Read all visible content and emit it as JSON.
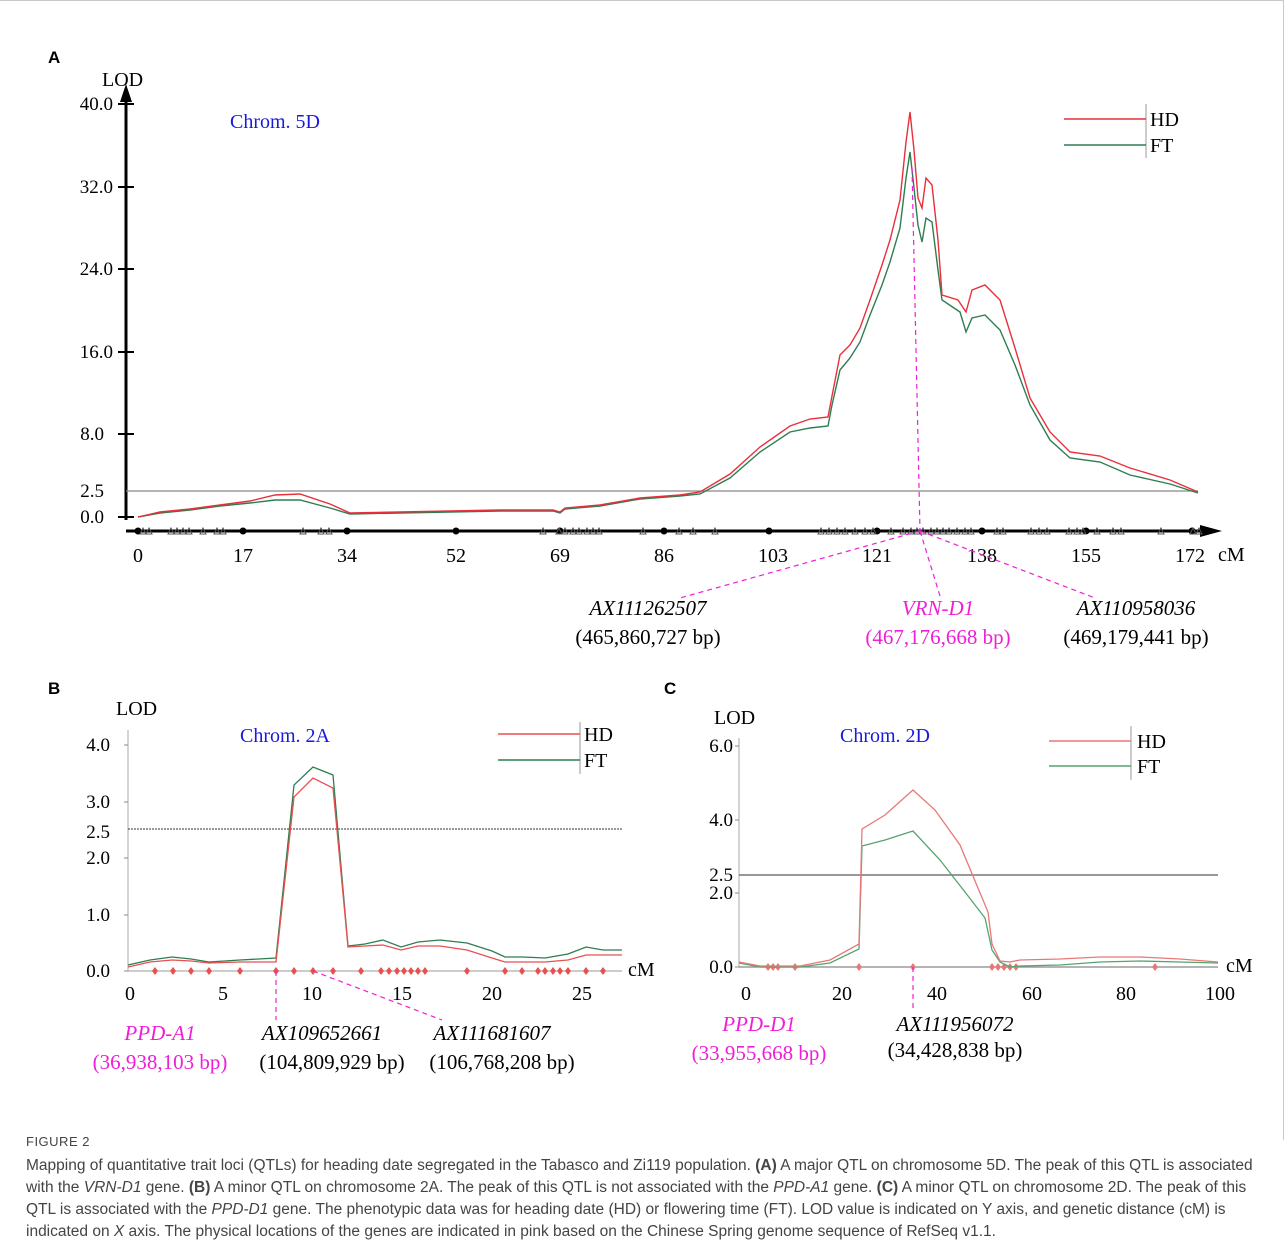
{
  "figure": {
    "panels": [
      {
        "letter": "A",
        "title": "Chrom. 5D",
        "ylabel": "LOD",
        "xlabel": "cM",
        "threshold": 2.5,
        "legend": [
          "HD",
          "FT"
        ],
        "ytick_labels": [
          "0.0",
          "2.5",
          "8.0",
          "16.0",
          "24.0",
          "32.0",
          "40.0"
        ],
        "xtick_labels": [
          "0",
          "17",
          "34",
          "52",
          "69",
          "86",
          "103",
          "121",
          "138",
          "155",
          "172"
        ],
        "markers": [
          {
            "name": "AX111262507",
            "pos": "(465,860,727 bp)",
            "pink": false
          },
          {
            "name": "VRN-D1",
            "pos": "(467,176,668 bp)",
            "pink": true
          },
          {
            "name": "AX110958036",
            "pos": "(469,179,441 bp)",
            "pink": false
          }
        ]
      },
      {
        "letter": "B",
        "title": "Chrom. 2A",
        "ylabel": "LOD",
        "xlabel": "cM",
        "threshold": 2.5,
        "legend": [
          "HD",
          "FT"
        ],
        "ytick_labels": [
          "0.0",
          "1.0",
          "2.0",
          "2.5",
          "3.0",
          "4.0"
        ],
        "xtick_labels": [
          "0",
          "5",
          "10",
          "15",
          "20",
          "25"
        ],
        "markers": [
          {
            "name": "PPD-A1",
            "pos": "(36,938,103 bp)",
            "pink": true
          },
          {
            "name": "AX109652661",
            "pos": "(104,809,929 bp)",
            "pink": false
          },
          {
            "name": "AX111681607",
            "pos": "(106,768,208 bp)",
            "pink": false
          }
        ]
      },
      {
        "letter": "C",
        "title": "Chrom. 2D",
        "ylabel": "LOD",
        "xlabel": "cM",
        "threshold": 2.5,
        "legend": [
          "HD",
          "FT"
        ],
        "ytick_labels": [
          "0.0",
          "2.0",
          "2.5",
          "4.0",
          "6.0"
        ],
        "xtick_labels": [
          "0",
          "20",
          "40",
          "60",
          "80",
          "100"
        ],
        "markers": [
          {
            "name": "PPD-D1",
            "pos": "(33,955,668 bp)",
            "pink": true
          },
          {
            "name": "AX111956072",
            "pos": "(34,428,838 bp)",
            "pink": false
          }
        ]
      }
    ],
    "colors": {
      "hd": "#e8303a",
      "ft": "#2e7d52",
      "title": "#1a1adc",
      "pink": "#ee1fd6",
      "panelB_hd": "#e85050",
      "panelC_hd": "#e87878",
      "panelC_ft": "#55a46e"
    }
  },
  "caption": {
    "label": "FIGURE 2",
    "s1": "Mapping of quantitative trait loci (QTLs) for heading date segregated in the Tabasco and Zi119 population. ",
    "a_tag": "(A)",
    "s2": " A major QTL on chromosome 5D. The peak of this QTL is associated with the ",
    "g1": "VRN-D1",
    "s3": " gene. ",
    "b_tag": "(B)",
    "s4": " A minor QTL on chromosome 2A. The peak of this QTL is not associated with the ",
    "g2": "PPD-A1",
    "s5": " gene. ",
    "c_tag": "(C)",
    "s6": " A minor QTL on chromosome 2D. The peak of this QTL is associated with the ",
    "g3": "PPD-D1",
    "s7": " gene. The phenotypic data was for heading date (HD) or flowering time (FT). LOD value is indicated on Y axis, and genetic distance (cM) is indicated on ",
    "xaxis": "X",
    "s8": " axis. The physical locations of the genes are indicated in pink based on the Chinese Spring genome sequence of RefSeq v1.1."
  }
}
